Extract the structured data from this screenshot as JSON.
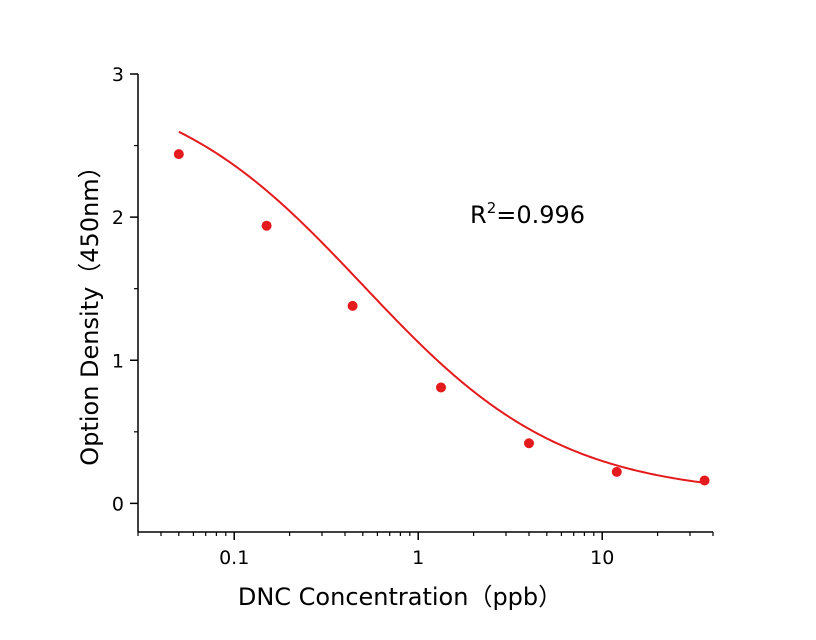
{
  "chart_data": {
    "type": "scatter",
    "xlabel": "DNC Concentration（ppb）",
    "ylabel": "Option Density（450nm）",
    "xscale": "log",
    "xlim": [
      0.03,
      40
    ],
    "ylim": [
      -0.2,
      3
    ],
    "xticks": [
      {
        "value": 0.1,
        "label": "0.1"
      },
      {
        "value": 1,
        "label": "1"
      },
      {
        "value": 10,
        "label": "10"
      }
    ],
    "yticks": [
      {
        "value": 0,
        "label": "0"
      },
      {
        "value": 1,
        "label": "1"
      },
      {
        "value": 2,
        "label": "2"
      },
      {
        "value": 3,
        "label": "3"
      }
    ],
    "grid": false,
    "annotation": {
      "base": "R",
      "sup": "2",
      "rest": "=0.996"
    },
    "color": "#e41a1c",
    "series": [
      {
        "points": [
          {
            "x": 0.05,
            "y": 2.44
          },
          {
            "x": 0.15,
            "y": 1.94
          },
          {
            "x": 0.44,
            "y": 1.38
          },
          {
            "x": 1.33,
            "y": 0.81
          },
          {
            "x": 4.0,
            "y": 0.42
          },
          {
            "x": 12.0,
            "y": 0.22
          },
          {
            "x": 36.0,
            "y": 0.16
          }
        ]
      }
    ],
    "fit": {
      "model": "4PL",
      "top": 3.0,
      "bottom": 0.05,
      "ic50": 0.5,
      "hill": 0.8,
      "x_range": [
        0.05,
        36.0
      ]
    }
  }
}
